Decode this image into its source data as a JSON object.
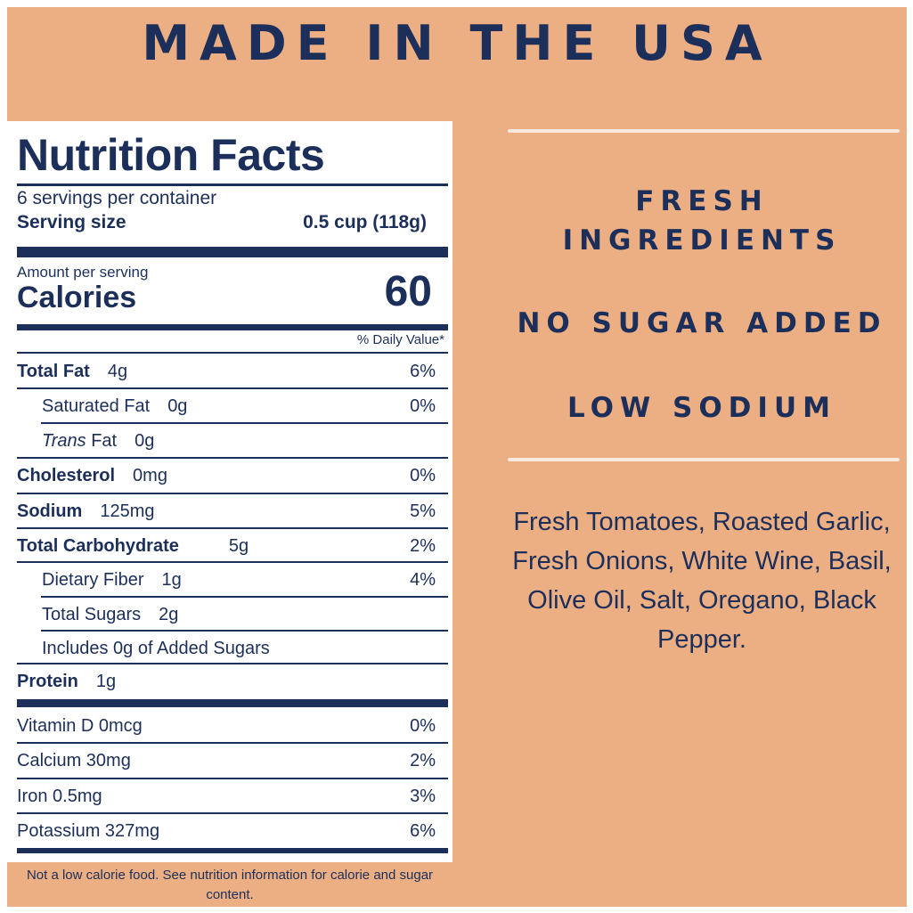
{
  "headline": "MADE IN THE USA",
  "nutrition": {
    "title": "Nutrition Facts",
    "servings_per_container": "6 servings per container",
    "serving_size_label": "Serving size",
    "serving_size_value": "0.5 cup (118g)",
    "amount_per_serving": "Amount per serving",
    "calories_label": "Calories",
    "calories_value": "60",
    "daily_value_header": "% Daily Value*",
    "rows": [
      {
        "name": "Total Fat",
        "amount": "4g",
        "dv": "6%"
      },
      {
        "name": "Saturated Fat",
        "amount": "0g",
        "dv": "0%"
      },
      {
        "name_italic": "Trans",
        "name": "Fat",
        "amount": "0g",
        "dv": ""
      },
      {
        "name": "Cholesterol",
        "amount": "0mg",
        "dv": "0%"
      },
      {
        "name": "Sodium",
        "amount": "125mg",
        "dv": "5%"
      },
      {
        "name": "Total Carbohydrate",
        "amount": "5g",
        "dv": "2%"
      },
      {
        "name": "Dietary Fiber",
        "amount": "1g",
        "dv": "4%"
      },
      {
        "name": "Total Sugars",
        "amount": "2g",
        "dv": ""
      },
      {
        "name": "Includes 0g of Added Sugars",
        "amount": "",
        "dv": ""
      },
      {
        "name": "Protein",
        "amount": "1g",
        "dv": ""
      }
    ],
    "vitamins": [
      {
        "name": "Vitamin D 0mcg",
        "dv": "0%"
      },
      {
        "name": "Calcium 30mg",
        "dv": "2%"
      },
      {
        "name": "Iron 0.5mg",
        "dv": "3%"
      },
      {
        "name": "Potassium 327mg",
        "dv": "6%"
      }
    ],
    "footnote": "Not a low calorie food. See nutrition information for calorie and sugar content."
  },
  "claims": {
    "fresh_line1": "FRESH",
    "fresh_line2": "INGREDIENTS",
    "no_sugar": "NO SUGAR ADDED",
    "low_sodium": "LOW SODIUM"
  },
  "ingredients": "Fresh Tomatoes, Roasted Garlic, Fresh Onions, White Wine, Basil, Olive Oil, Salt, Oregano, Black Pepper.",
  "colors": {
    "background": "#ECAE83",
    "navy": "#1C2F5A",
    "panel": "#FFFFFF"
  }
}
